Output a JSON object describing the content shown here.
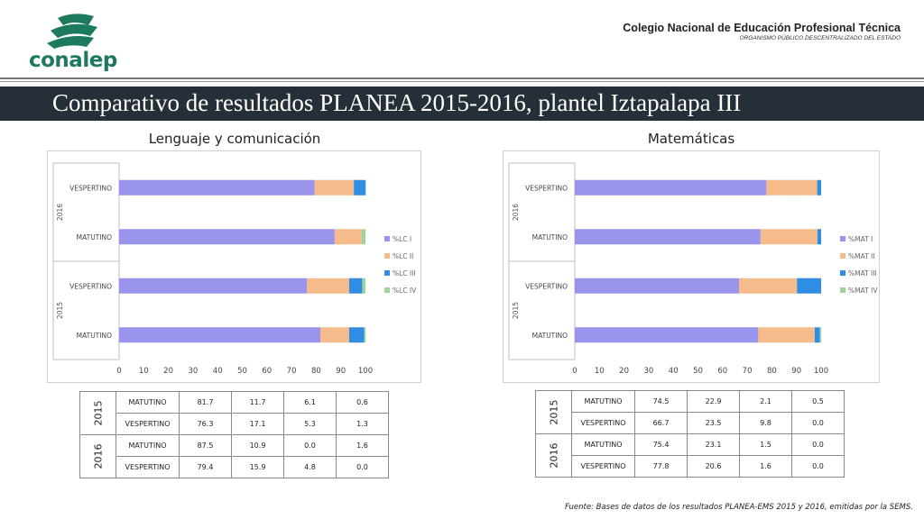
{
  "header": {
    "logo_text": "conalep",
    "institution_name": "Colegio Nacional de Educación Profesional Técnica",
    "institution_sub": "ORGANISMO PÚBLICO DESCENTRALIZADO DEL ESTADO",
    "title": "Comparativo de resultados PLANEA 2015-2016, plantel Iztapalapa III"
  },
  "colors": {
    "banner": "#262f38",
    "series": [
      "#9a94ec",
      "#f5bb8a",
      "#2f8de4",
      "#9ed39a"
    ],
    "brand_green": "#1e7a5e"
  },
  "chart_data": [
    {
      "type": "bar",
      "orientation": "horizontal",
      "stacked": true,
      "title": "Lenguaje y comunicación",
      "groups": [
        "2016",
        "2015"
      ],
      "categories": [
        "VESPERTINO",
        "MATUTINO",
        "VESPERTINO",
        "MATUTINO"
      ],
      "category_groups": [
        "2016",
        "2016",
        "2015",
        "2015"
      ],
      "series": [
        {
          "name": "%LC I",
          "values": [
            79.4,
            87.5,
            76.3,
            81.7
          ]
        },
        {
          "name": "%LC II",
          "values": [
            15.9,
            10.9,
            17.1,
            11.7
          ]
        },
        {
          "name": "%LC III",
          "values": [
            4.8,
            0.0,
            5.3,
            6.1
          ]
        },
        {
          "name": "%LC IV",
          "values": [
            0.0,
            1.6,
            1.3,
            0.6
          ]
        }
      ],
      "xlim": [
        0,
        100
      ],
      "xticks": [
        "0",
        "10",
        "20",
        "30",
        "40",
        "50",
        "60",
        "70",
        "80",
        "90",
        "100"
      ],
      "legend": "right",
      "grid": false
    },
    {
      "type": "bar",
      "orientation": "horizontal",
      "stacked": true,
      "title": "Matemáticas",
      "groups": [
        "2016",
        "2015"
      ],
      "categories": [
        "VESPERTINO",
        "MATUTINO",
        "VESPERTINO",
        "MATUTINO"
      ],
      "category_groups": [
        "2016",
        "2016",
        "2015",
        "2015"
      ],
      "series": [
        {
          "name": "%MAT I",
          "values": [
            77.8,
            75.4,
            66.7,
            74.5
          ]
        },
        {
          "name": "%MAT II",
          "values": [
            20.6,
            23.1,
            23.5,
            22.9
          ]
        },
        {
          "name": "%MAT III",
          "values": [
            1.6,
            1.5,
            9.8,
            2.1
          ]
        },
        {
          "name": "%MAT IV",
          "values": [
            0.0,
            0.0,
            0.0,
            0.5
          ]
        }
      ],
      "xlim": [
        0,
        100
      ],
      "xticks": [
        "0",
        "10",
        "20",
        "30",
        "40",
        "50",
        "60",
        "70",
        "80",
        "90",
        "100"
      ],
      "legend": "right",
      "grid": false
    }
  ],
  "tables": [
    {
      "rows": [
        {
          "year": "2015",
          "turno": "MATUTINO",
          "values": [
            "81.7",
            "11.7",
            "6.1",
            "0.6"
          ]
        },
        {
          "year": "2015",
          "turno": "VESPERTINO",
          "values": [
            "76.3",
            "17.1",
            "5.3",
            "1.3"
          ]
        },
        {
          "year": "2016",
          "turno": "MATUTINO",
          "values": [
            "87.5",
            "10.9",
            "0.0",
            "1.6"
          ]
        },
        {
          "year": "2016",
          "turno": "VESPERTINO",
          "values": [
            "79.4",
            "15.9",
            "4.8",
            "0.0"
          ]
        }
      ]
    },
    {
      "rows": [
        {
          "year": "2015",
          "turno": "MATUTINO",
          "values": [
            "74.5",
            "22.9",
            "2.1",
            "0.5"
          ]
        },
        {
          "year": "2015",
          "turno": "VESPERTINO",
          "values": [
            "66.7",
            "23.5",
            "9.8",
            "0.0"
          ]
        },
        {
          "year": "2016",
          "turno": "MATUTINO",
          "values": [
            "75.4",
            "23.1",
            "1.5",
            "0.0"
          ]
        },
        {
          "year": "2016",
          "turno": "VESPERTINO",
          "values": [
            "77.8",
            "20.6",
            "1.6",
            "0.0"
          ]
        }
      ]
    }
  ],
  "source": "Fuente: Bases de datos de los resultados PLANEA-EMS 2015 y 2016, emitidas por la SEMS."
}
